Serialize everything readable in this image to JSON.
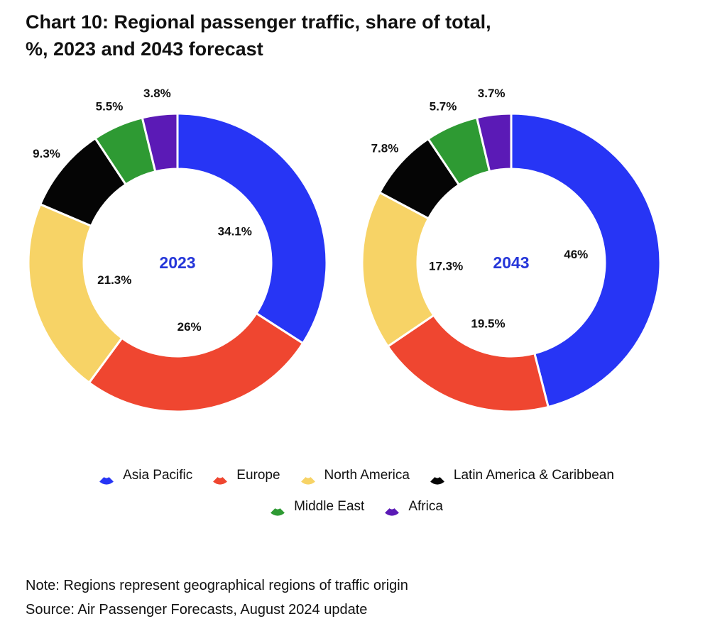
{
  "title_line1": "Chart 10: Regional passenger traffic, share of total,",
  "title_line2": "%, 2023 and 2043 forecast",
  "note": "Note: Regions represent geographical regions of traffic origin",
  "source": "Source: Air Passenger Forecasts, August 2024 update",
  "colors": {
    "Asia Pacific": "#2735f5",
    "Europe": "#ef4630",
    "North America": "#f7d366",
    "Latin America & Caribbean": "#050505",
    "Middle East": "#2e9a33",
    "Africa": "#5b1ab6",
    "center_label": "#2536d9"
  },
  "chart_data": [
    {
      "type": "pie",
      "center_label": "2023",
      "categories": [
        "Asia Pacific",
        "Europe",
        "North America",
        "Latin America & Caribbean",
        "Middle East",
        "Africa"
      ],
      "values": [
        34.1,
        26,
        21.3,
        9.3,
        5.5,
        3.8
      ],
      "labels": [
        "34.1%",
        "26%",
        "21.3%",
        "9.3%",
        "5.5%",
        "3.8%"
      ]
    },
    {
      "type": "pie",
      "center_label": "2043",
      "categories": [
        "Asia Pacific",
        "Europe",
        "North America",
        "Latin America & Caribbean",
        "Middle East",
        "Africa"
      ],
      "values": [
        46,
        19.5,
        17.3,
        7.8,
        5.7,
        3.7
      ],
      "labels": [
        "46%",
        "19.5%",
        "17.3%",
        "7.8%",
        "5.7%",
        "3.7%"
      ]
    }
  ],
  "legend": {
    "row1": [
      "Asia Pacific",
      "Europe",
      "North America",
      "Latin America & Caribbean"
    ],
    "row2": [
      "Middle East",
      "Africa"
    ]
  }
}
